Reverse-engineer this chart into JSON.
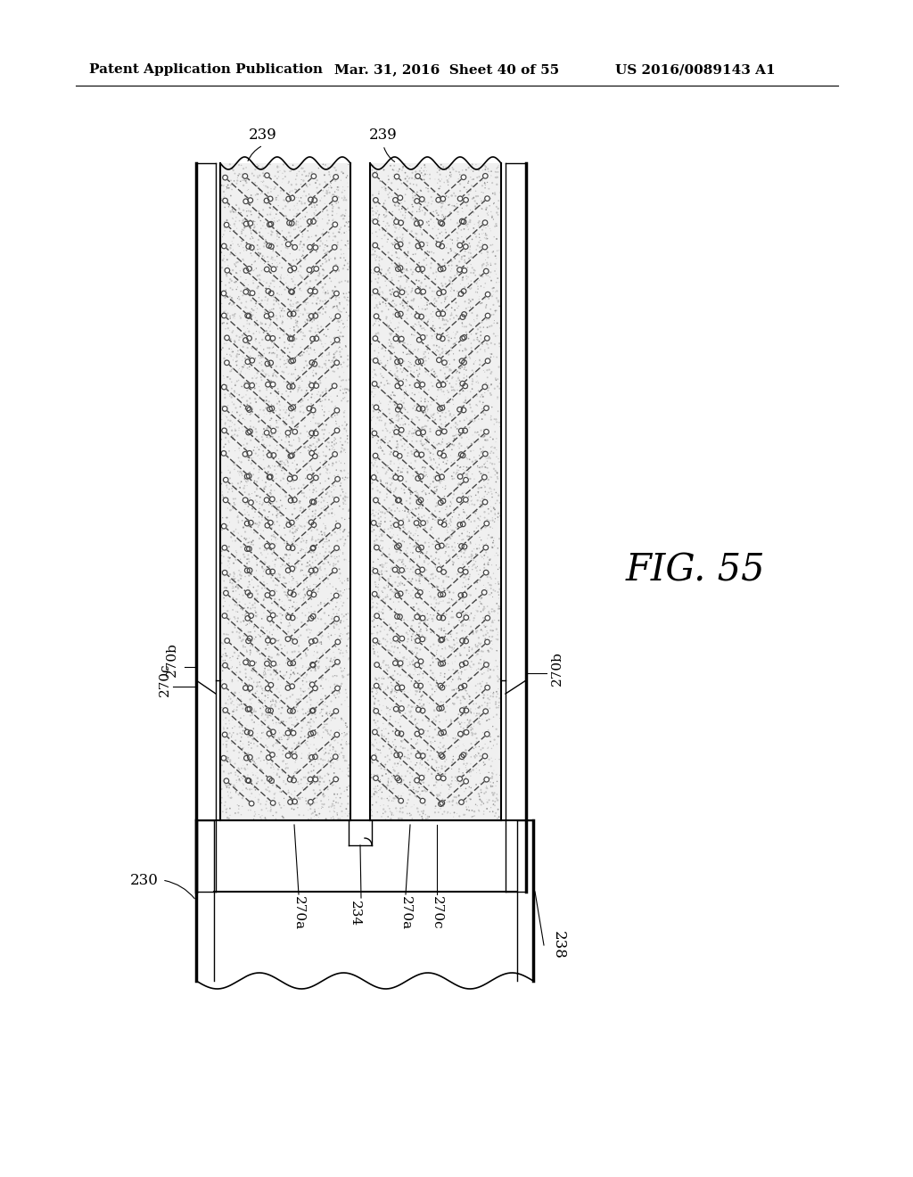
{
  "bg_color": "#ffffff",
  "header_left": "Patent Application Publication",
  "header_mid": "Mar. 31, 2016  Sheet 40 of 55",
  "header_right": "US 2016/0089143 A1",
  "fig_label": "FIG. 55",
  "line_color": "#000000",
  "speckle_color_light": "#bbbbbb",
  "speckle_color_dark": "#888888",
  "staple_color": "#444444",
  "frame_lw_thick": 2.5,
  "frame_lw_med": 1.5,
  "frame_lw_thin": 1.0,
  "font_size_header": 11,
  "font_size_label": 12,
  "font_size_fig": 30
}
